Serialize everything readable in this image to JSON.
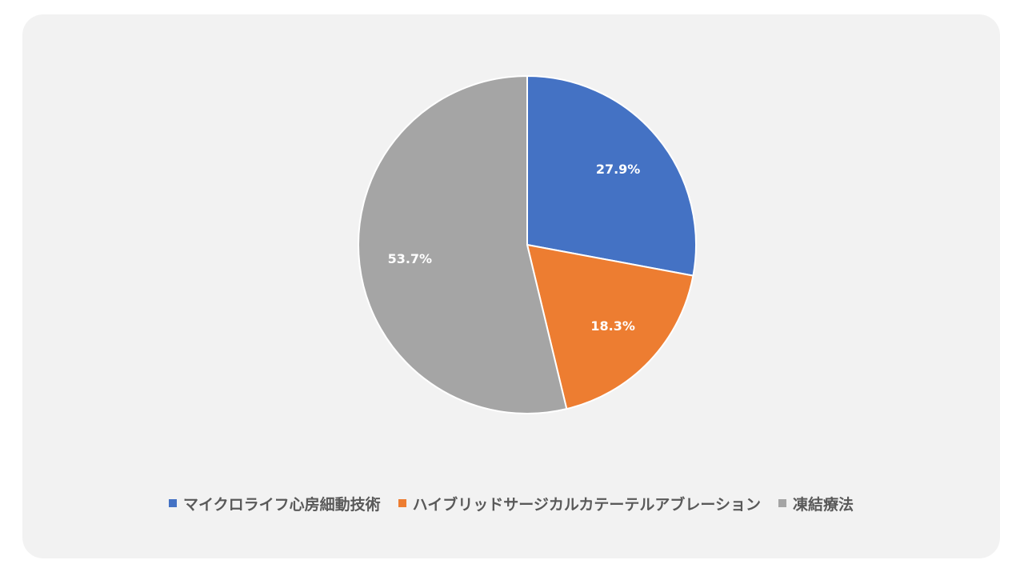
{
  "chart_data": {
    "type": "pie",
    "categories": [
      "マイクロライフ心房細動技術",
      "ハイブリッドサージカルカテーテルアブレーション",
      "凍結療法"
    ],
    "values": [
      27.9,
      18.3,
      53.7
    ],
    "data_labels": [
      "27.9%",
      "18.3%",
      "53.7%"
    ],
    "colors": [
      "#4472c4",
      "#ed7d31",
      "#a5a5a5"
    ],
    "title": "",
    "legend_position": "bottom"
  }
}
